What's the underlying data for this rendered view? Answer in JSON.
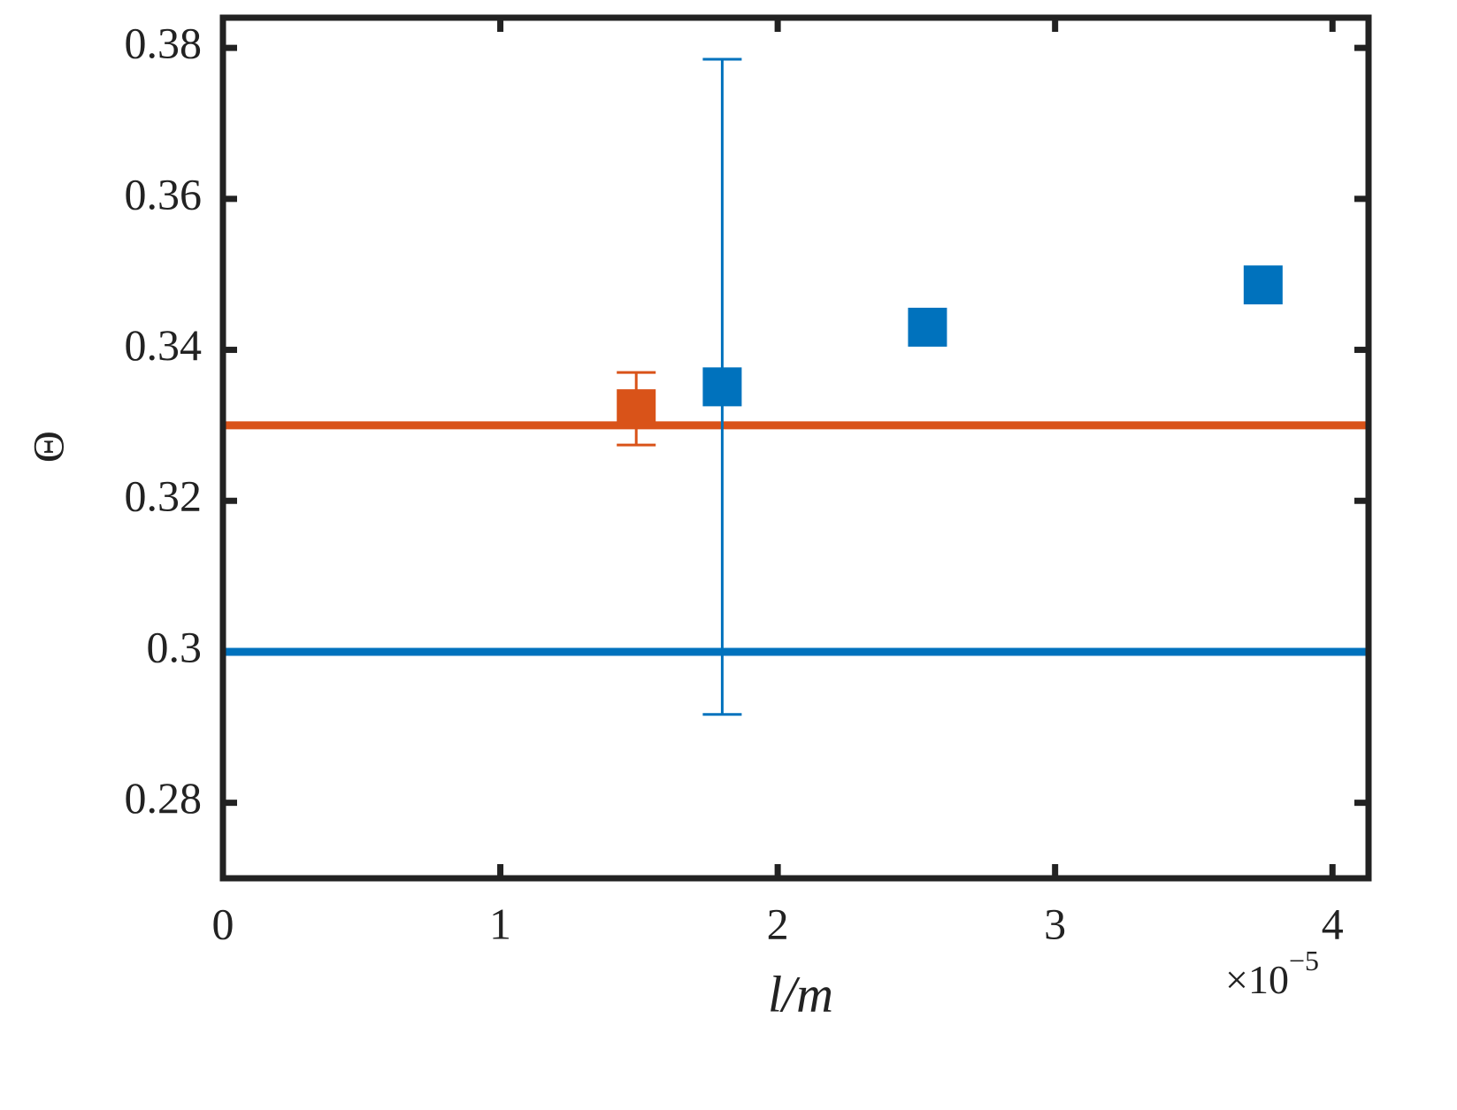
{
  "chart_data": {
    "type": "scatter",
    "x_label": "l/m",
    "y_label": "Θ",
    "x_exponent_base": "×10",
    "x_exponent": "−5",
    "xlim": [
      0,
      4.13
    ],
    "xticks": [
      0,
      1,
      2,
      3,
      4
    ],
    "ylim": [
      0.27,
      0.384
    ],
    "yticks": [
      0.28,
      0.3,
      0.32,
      0.34,
      0.36,
      0.38
    ],
    "series": [
      {
        "color": "#d95319",
        "x": [
          1.49
        ],
        "values": [
          0.3322
        ],
        "errors": [
          0.0048
        ]
      },
      {
        "color": "#0072bd",
        "x": [
          1.8,
          2.54,
          3.75
        ],
        "values": [
          0.3351,
          0.343,
          0.3486
        ],
        "errors": [
          0.0434,
          null,
          null
        ]
      }
    ],
    "hlines": [
      {
        "y": 0.33,
        "color": "#d95319"
      },
      {
        "y": 0.3,
        "color": "#0072bd"
      }
    ]
  }
}
